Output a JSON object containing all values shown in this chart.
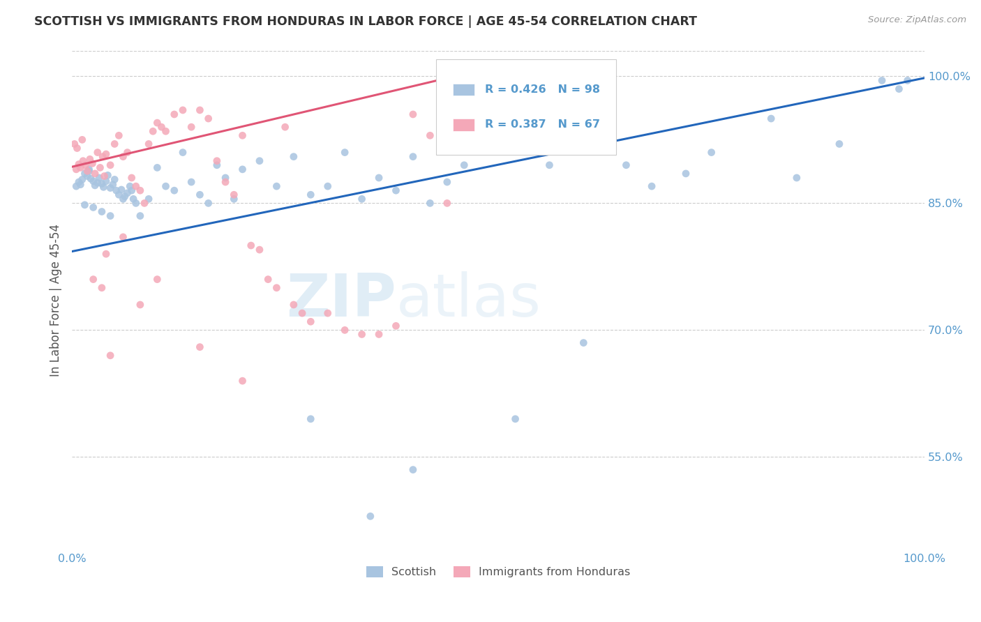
{
  "title": "SCOTTISH VS IMMIGRANTS FROM HONDURAS IN LABOR FORCE | AGE 45-54 CORRELATION CHART",
  "source": "Source: ZipAtlas.com",
  "ylabel": "In Labor Force | Age 45-54",
  "xlim": [
    0.0,
    1.0
  ],
  "ylim": [
    0.44,
    1.03
  ],
  "yticks": [
    0.55,
    0.7,
    0.85,
    1.0
  ],
  "ytick_labels": [
    "55.0%",
    "70.0%",
    "85.0%",
    "100.0%"
  ],
  "xticks": [
    0.0,
    0.2,
    0.4,
    0.6,
    0.8,
    1.0
  ],
  "xtick_labels": [
    "0.0%",
    "",
    "",
    "",
    "",
    "100.0%"
  ],
  "blue_R": 0.426,
  "blue_N": 98,
  "pink_R": 0.387,
  "pink_N": 67,
  "blue_color": "#a8c4e0",
  "pink_color": "#f4a8b8",
  "blue_line_color": "#2266bb",
  "pink_line_color": "#e05575",
  "legend_blue_label": "Scottish",
  "legend_pink_label": "Immigrants from Honduras",
  "watermark_zip": "ZIP",
  "watermark_atlas": "atlas",
  "background_color": "#ffffff",
  "title_color": "#333333",
  "axis_color": "#5599cc",
  "grid_color": "#cccccc",
  "blue_line_x0": 0.0,
  "blue_line_y0": 0.793,
  "blue_line_x1": 1.0,
  "blue_line_y1": 0.998,
  "pink_line_x0": 0.0,
  "pink_line_y0": 0.893,
  "pink_line_x1": 0.47,
  "pink_line_y1": 1.005
}
